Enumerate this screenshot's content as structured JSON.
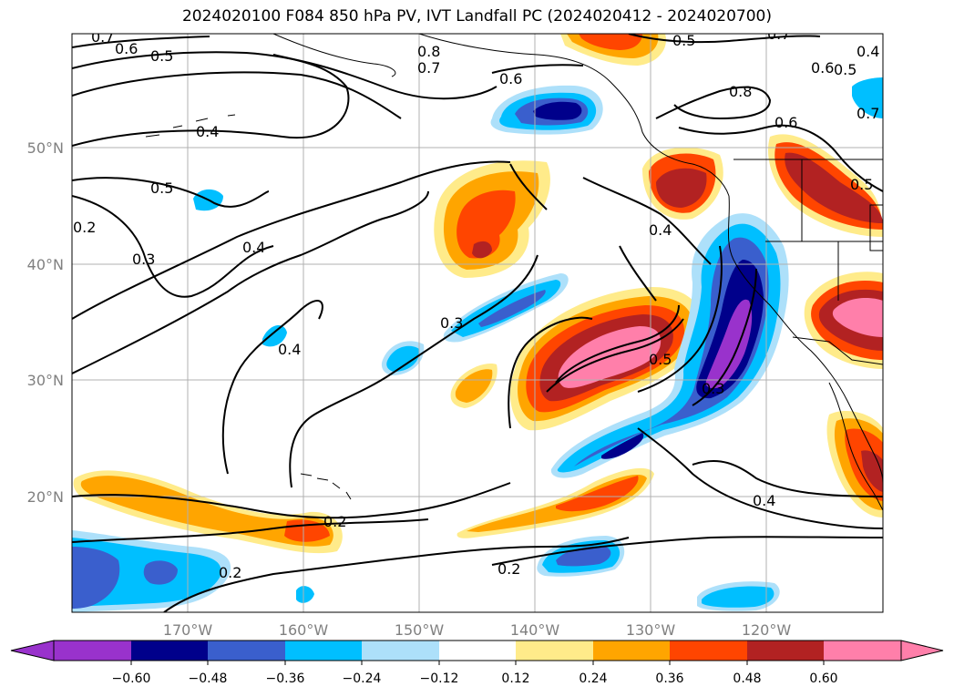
{
  "title": "2024020100 F084 850 hPa PV, IVT Landfall PC (2024020412 - 2024020700)",
  "lon_labels": [
    "170°W",
    "160°W",
    "150°W",
    "140°W",
    "130°W",
    "120°W"
  ],
  "lat_labels": [
    "50°N",
    "40°N",
    "30°N",
    "20°N"
  ],
  "contour_labels": [
    "0.7",
    "0.6",
    "0.5",
    "0.8",
    "0.7",
    "0.5",
    "0.7",
    "0.4",
    "0.6",
    "0.8",
    "0.6",
    "0.7",
    "0.5",
    "0.4",
    "0.5",
    "0.2",
    "0.3",
    "0.4",
    "0.3",
    "0.4",
    "0.5",
    "0.3",
    "0.4",
    "0.5",
    "0.2",
    "0.2",
    "0.2",
    "0.4",
    "0.6"
  ],
  "colorbar": {
    "tick_labels": [
      "−0.60",
      "−0.48",
      "−0.36",
      "−0.24",
      "−0.12",
      "0.12",
      "0.24",
      "0.36",
      "0.48",
      "0.60"
    ],
    "colors": [
      "#9932CC",
      "#00008B",
      "#3A5FCD",
      "#00BFFF",
      "#ADE0FA",
      "#FFFFFF",
      "#FFEB8A",
      "#FFA500",
      "#FF4500",
      "#B22222",
      "#FF7FAA"
    ]
  }
}
